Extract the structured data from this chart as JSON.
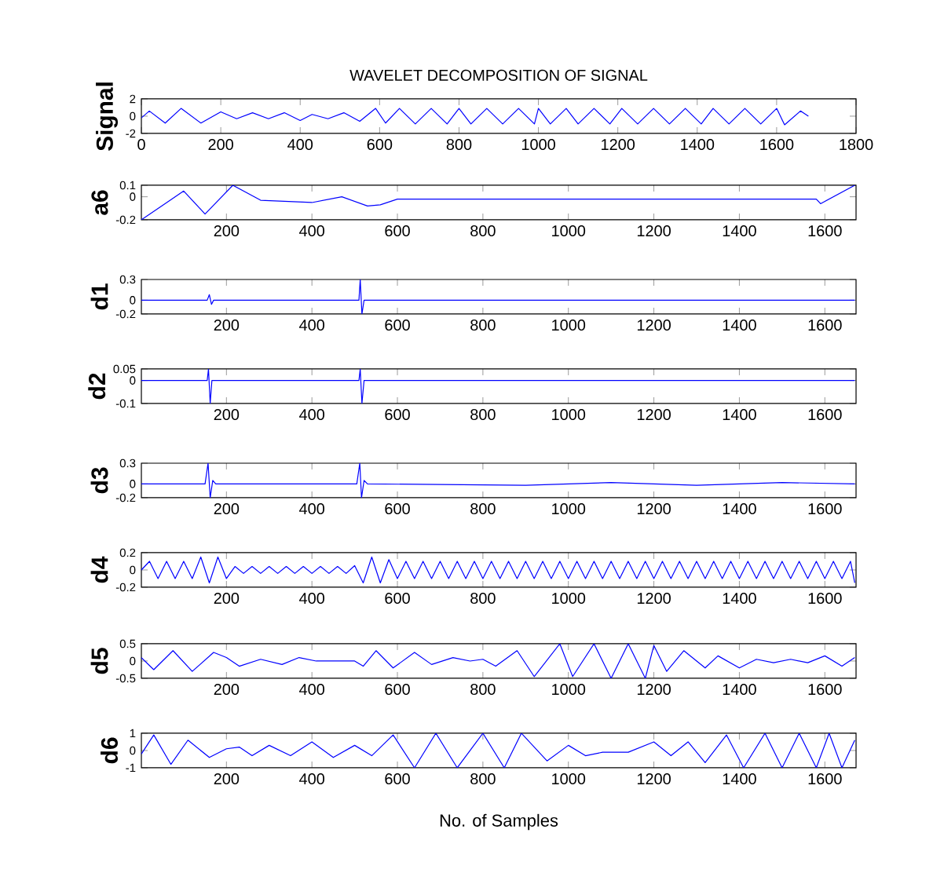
{
  "chart_data": [
    {
      "type": "line",
      "title": "WAVELET DECOMPOSITION OF SIGNAL",
      "ylabel": "Signal",
      "xlim": [
        0,
        1800
      ],
      "ylim": [
        -2,
        2
      ],
      "xticks": [
        0,
        200,
        400,
        600,
        800,
        1000,
        1200,
        1400,
        1600,
        1800
      ],
      "yticks": [
        -2,
        0,
        2
      ],
      "series": [
        {
          "color": "#0000ff",
          "x": [
            0,
            20,
            60,
            100,
            150,
            200,
            240,
            280,
            320,
            360,
            400,
            430,
            470,
            510,
            550,
            590,
            615,
            650,
            690,
            730,
            770,
            800,
            830,
            870,
            910,
            950,
            990,
            1000,
            1030,
            1070,
            1100,
            1140,
            1180,
            1210,
            1250,
            1290,
            1330,
            1370,
            1410,
            1440,
            1480,
            1520,
            1560,
            1600,
            1620,
            1660,
            1680
          ],
          "values": [
            -0.2,
            0.6,
            -0.8,
            0.9,
            -0.8,
            0.5,
            -0.3,
            0.4,
            -0.3,
            0.4,
            -0.5,
            0.2,
            -0.3,
            0.4,
            -0.6,
            0.9,
            -0.8,
            0.9,
            -0.9,
            0.9,
            -0.9,
            0.9,
            -0.9,
            0.9,
            -0.9,
            0.9,
            -0.9,
            0.9,
            -0.9,
            0.9,
            -0.9,
            0.9,
            -0.9,
            0.9,
            -0.9,
            0.9,
            -0.9,
            0.9,
            -0.9,
            0.9,
            -0.9,
            0.9,
            -0.9,
            0.9,
            -1.0,
            0.6,
            0.0
          ]
        }
      ]
    },
    {
      "type": "line",
      "ylabel": "a6",
      "xlim": [
        1,
        1673
      ],
      "ylim": [
        -0.2,
        0.1
      ],
      "xticks": [
        200,
        400,
        600,
        800,
        1000,
        1200,
        1400,
        1600
      ],
      "yticks": [
        -0.2,
        0,
        0.1
      ],
      "series": [
        {
          "color": "#0000ff",
          "x": [
            1,
            100,
            150,
            215,
            280,
            400,
            470,
            530,
            560,
            600,
            1580,
            1590,
            1670
          ],
          "values": [
            -0.2,
            0.05,
            -0.15,
            0.1,
            -0.03,
            -0.05,
            0.0,
            -0.08,
            -0.07,
            -0.02,
            -0.02,
            -0.06,
            0.1
          ]
        }
      ]
    },
    {
      "type": "line",
      "ylabel": "d1",
      "xlim": [
        1,
        1673
      ],
      "ylim": [
        -0.2,
        0.3
      ],
      "xticks": [
        200,
        400,
        600,
        800,
        1000,
        1200,
        1400,
        1600
      ],
      "yticks": [
        -0.2,
        0,
        0.3
      ],
      "series": [
        {
          "color": "#0000ff",
          "x": [
            1,
            155,
            160,
            165,
            170,
            510,
            513,
            517,
            522,
            1670
          ],
          "values": [
            0,
            0,
            0.08,
            -0.06,
            0,
            0,
            0.3,
            -0.2,
            0,
            0
          ]
        }
      ]
    },
    {
      "type": "line",
      "ylabel": "d2",
      "xlim": [
        1,
        1673
      ],
      "ylim": [
        -0.1,
        0.05
      ],
      "xticks": [
        200,
        400,
        600,
        800,
        1000,
        1200,
        1400,
        1600
      ],
      "yticks": [
        -0.1,
        0,
        0.05
      ],
      "series": [
        {
          "color": "#0000ff",
          "x": [
            1,
            155,
            158,
            162,
            166,
            510,
            513,
            517,
            522,
            1670
          ],
          "values": [
            0,
            0,
            0.05,
            -0.1,
            0,
            0,
            0.05,
            -0.1,
            0,
            0
          ]
        }
      ]
    },
    {
      "type": "line",
      "ylabel": "d3",
      "xlim": [
        1,
        1673
      ],
      "ylim": [
        -0.2,
        0.3
      ],
      "xticks": [
        200,
        400,
        600,
        800,
        1000,
        1200,
        1400,
        1600
      ],
      "yticks": [
        -0.2,
        0,
        0.3
      ],
      "series": [
        {
          "color": "#0000ff",
          "x": [
            1,
            150,
            157,
            162,
            168,
            175,
            505,
            512,
            516,
            522,
            530,
            900,
            1100,
            1300,
            1500,
            1670
          ],
          "values": [
            0,
            0,
            0.3,
            -0.2,
            0.05,
            0,
            0,
            0.3,
            -0.2,
            0.05,
            0,
            -0.02,
            0.02,
            -0.02,
            0.02,
            0
          ]
        }
      ]
    },
    {
      "type": "line",
      "ylabel": "d4",
      "xlim": [
        1,
        1673
      ],
      "ylim": [
        -0.2,
        0.2
      ],
      "xticks": [
        200,
        400,
        600,
        800,
        1000,
        1200,
        1400,
        1600
      ],
      "yticks": [
        -0.2,
        0,
        0.2
      ],
      "series": [
        {
          "color": "#0000ff",
          "x": [
            1,
            20,
            40,
            60,
            80,
            100,
            120,
            140,
            160,
            180,
            200,
            220,
            240,
            260,
            280,
            300,
            320,
            340,
            360,
            380,
            400,
            420,
            440,
            460,
            480,
            500,
            520,
            540,
            560,
            580,
            600,
            620,
            640,
            660,
            680,
            700,
            720,
            740,
            760,
            780,
            800,
            820,
            840,
            860,
            880,
            900,
            920,
            940,
            960,
            980,
            1000,
            1020,
            1040,
            1060,
            1080,
            1100,
            1120,
            1140,
            1160,
            1180,
            1200,
            1220,
            1240,
            1260,
            1280,
            1300,
            1320,
            1340,
            1360,
            1380,
            1400,
            1420,
            1440,
            1460,
            1480,
            1500,
            1520,
            1540,
            1560,
            1580,
            1600,
            1620,
            1640,
            1660,
            1670
          ],
          "values": [
            0,
            0.1,
            -0.1,
            0.1,
            -0.1,
            0.1,
            -0.1,
            0.15,
            -0.15,
            0.15,
            -0.1,
            0.04,
            -0.04,
            0.04,
            -0.04,
            0.04,
            -0.04,
            0.04,
            -0.04,
            0.04,
            -0.04,
            0.04,
            -0.04,
            0.04,
            -0.04,
            0.05,
            -0.15,
            0.15,
            -0.15,
            0.12,
            -0.1,
            0.1,
            -0.1,
            0.1,
            -0.1,
            0.1,
            -0.1,
            0.1,
            -0.1,
            0.1,
            -0.1,
            0.1,
            -0.1,
            0.1,
            -0.1,
            0.1,
            -0.1,
            0.1,
            -0.1,
            0.1,
            -0.1,
            0.1,
            -0.1,
            0.1,
            -0.1,
            0.1,
            -0.1,
            0.1,
            -0.1,
            0.1,
            -0.1,
            0.1,
            -0.1,
            0.1,
            -0.1,
            0.1,
            -0.1,
            0.1,
            -0.1,
            0.1,
            -0.1,
            0.1,
            -0.1,
            0.1,
            -0.1,
            0.1,
            -0.1,
            0.1,
            -0.1,
            0.1,
            -0.1,
            0.1,
            -0.1,
            0.1,
            -0.15
          ]
        }
      ]
    },
    {
      "type": "line",
      "ylabel": "d5",
      "xlim": [
        1,
        1673
      ],
      "ylim": [
        -0.5,
        0.5
      ],
      "xticks": [
        200,
        400,
        600,
        800,
        1000,
        1200,
        1400,
        1600
      ],
      "yticks": [
        -0.5,
        0,
        0.5
      ],
      "series": [
        {
          "color": "#0000ff",
          "x": [
            1,
            30,
            75,
            120,
            170,
            200,
            230,
            280,
            330,
            370,
            410,
            500,
            520,
            550,
            590,
            640,
            680,
            730,
            770,
            800,
            830,
            880,
            920,
            980,
            1010,
            1060,
            1100,
            1140,
            1180,
            1200,
            1230,
            1270,
            1320,
            1350,
            1400,
            1440,
            1480,
            1520,
            1560,
            1600,
            1640,
            1670
          ],
          "values": [
            0.1,
            -0.25,
            0.3,
            -0.3,
            0.25,
            0.1,
            -0.15,
            0.05,
            -0.1,
            0.1,
            0.0,
            0.0,
            -0.15,
            0.3,
            -0.2,
            0.25,
            -0.1,
            0.1,
            0.0,
            0.05,
            -0.15,
            0.3,
            -0.45,
            0.5,
            -0.45,
            0.5,
            -0.5,
            0.5,
            -0.5,
            0.45,
            -0.3,
            0.3,
            -0.2,
            0.15,
            -0.2,
            0.05,
            -0.05,
            0.05,
            -0.05,
            0.15,
            -0.15,
            0.1
          ]
        }
      ]
    },
    {
      "type": "line",
      "ylabel": "d6",
      "xlabel": "No. of Samples",
      "xlim": [
        1,
        1673
      ],
      "ylim": [
        -1,
        1
      ],
      "xticks": [
        200,
        400,
        600,
        800,
        1000,
        1200,
        1400,
        1600
      ],
      "yticks": [
        -1,
        0,
        1
      ],
      "series": [
        {
          "color": "#0000ff",
          "x": [
            1,
            30,
            70,
            110,
            160,
            200,
            230,
            260,
            300,
            350,
            400,
            450,
            500,
            540,
            590,
            640,
            690,
            740,
            800,
            850,
            890,
            950,
            1000,
            1040,
            1080,
            1140,
            1200,
            1240,
            1280,
            1320,
            1370,
            1410,
            1460,
            1500,
            1540,
            1580,
            1610,
            1640,
            1670
          ],
          "values": [
            -0.2,
            0.9,
            -0.8,
            0.6,
            -0.4,
            0.1,
            0.2,
            -0.3,
            0.3,
            -0.3,
            0.5,
            -0.4,
            0.3,
            -0.3,
            0.9,
            -1,
            1,
            -1,
            1,
            -1,
            1,
            -0.6,
            0.3,
            -0.3,
            -0.1,
            -0.1,
            0.5,
            -0.3,
            0.5,
            -0.7,
            0.9,
            -1,
            1,
            -1,
            1,
            -1,
            1,
            -1,
            0.6
          ]
        }
      ]
    }
  ]
}
